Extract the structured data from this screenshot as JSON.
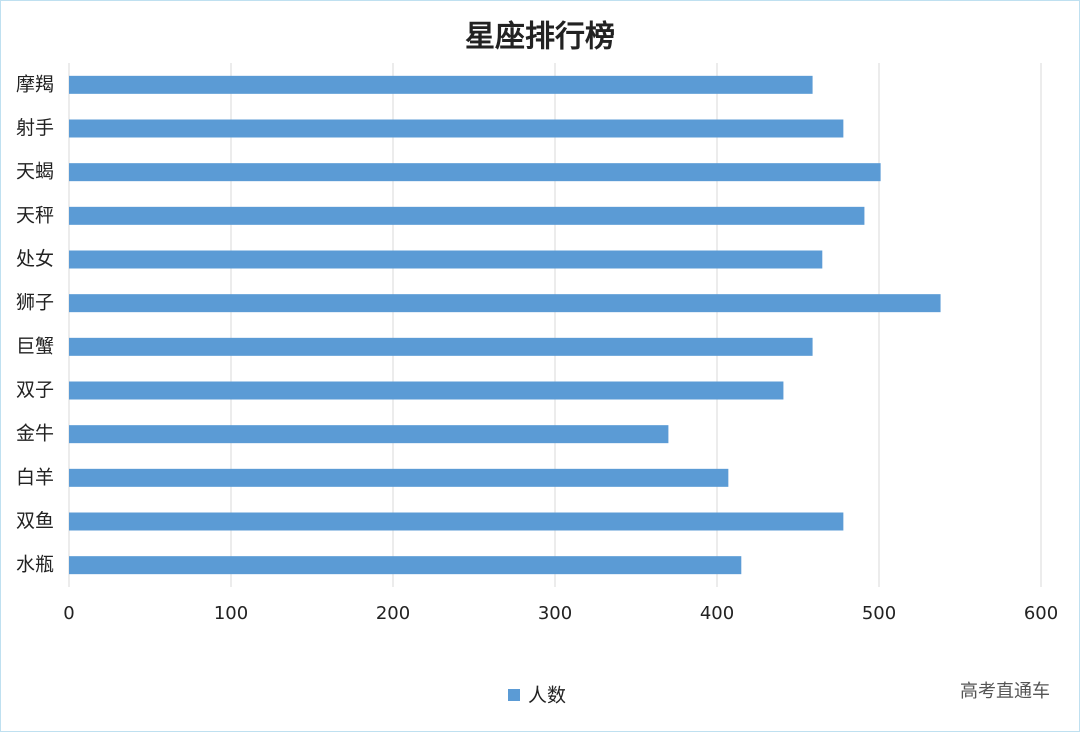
{
  "chart_data": {
    "type": "barh",
    "title": "星座排行榜",
    "categories": [
      "摩羯",
      "射手",
      "天蝎",
      "天秤",
      "处女",
      "狮子",
      "巨蟹",
      "双子",
      "金牛",
      "白羊",
      "双鱼",
      "水瓶"
    ],
    "series": [
      {
        "name": "人数",
        "color": "#5b9bd5",
        "values": [
          459,
          478,
          501,
          491,
          465,
          538,
          459,
          441,
          370,
          407,
          478,
          415
        ]
      }
    ],
    "xlim": [
      0,
      600
    ],
    "xticks": [
      0,
      100,
      200,
      300,
      400,
      500,
      600
    ],
    "grid": true,
    "legend": "bottom",
    "source": "高考直通车"
  }
}
